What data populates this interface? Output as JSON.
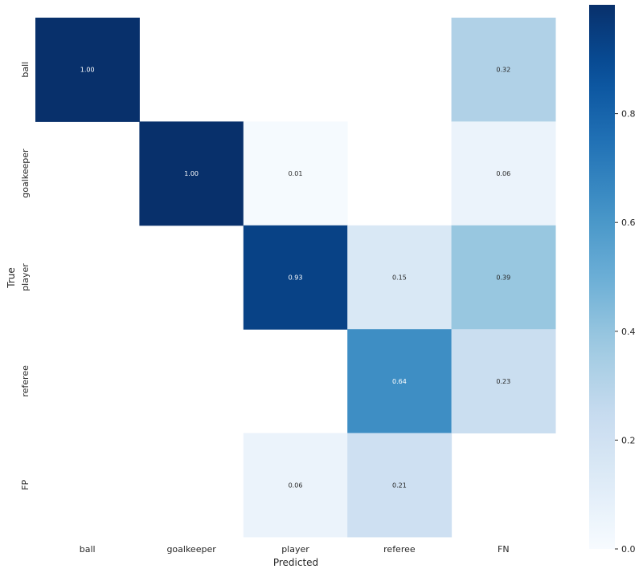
{
  "chart_data": {
    "type": "heatmap",
    "title": "",
    "xlabel": "Predicted",
    "ylabel": "True",
    "x_categories": [
      "ball",
      "goalkeeper",
      "player",
      "referee",
      "FN"
    ],
    "y_categories": [
      "ball",
      "goalkeeper",
      "player",
      "referee",
      "FP"
    ],
    "values": [
      [
        1.0,
        null,
        null,
        null,
        0.32
      ],
      [
        null,
        1.0,
        0.01,
        null,
        0.06
      ],
      [
        null,
        null,
        0.93,
        0.15,
        0.39
      ],
      [
        null,
        null,
        null,
        0.64,
        0.23
      ],
      [
        null,
        null,
        0.06,
        0.21,
        null
      ]
    ],
    "value_labels": [
      [
        "1.00",
        "",
        "",
        "",
        "0.32"
      ],
      [
        "",
        "1.00",
        "0.01",
        "",
        "0.06"
      ],
      [
        "",
        "",
        "0.93",
        "0.15",
        "0.39"
      ],
      [
        "",
        "",
        "",
        "0.64",
        "0.23"
      ],
      [
        "",
        "",
        "0.06",
        "0.21",
        ""
      ]
    ],
    "colormap": "Blues",
    "vmin": 0.0,
    "vmax": 1.0,
    "colorbar_ticks": [
      {
        "value": 0.0,
        "label": "0.0"
      },
      {
        "value": 0.2,
        "label": "0.2"
      },
      {
        "value": 0.4,
        "label": "0.4"
      },
      {
        "value": 0.6,
        "label": "0.6"
      },
      {
        "value": 0.8,
        "label": "0.8"
      }
    ]
  }
}
